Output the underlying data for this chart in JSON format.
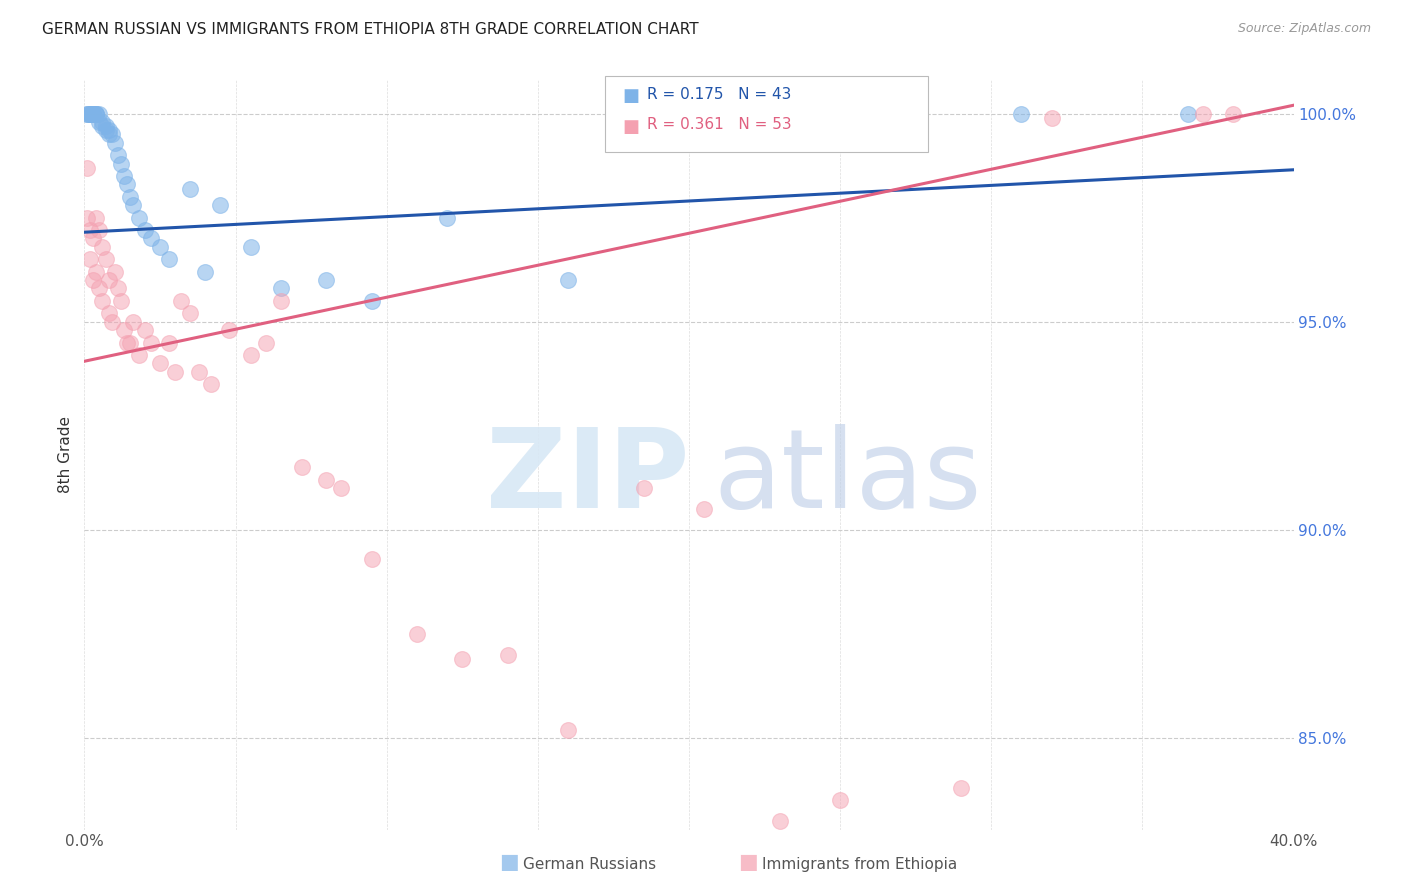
{
  "title": "GERMAN RUSSIAN VS IMMIGRANTS FROM ETHIOPIA 8TH GRADE CORRELATION CHART",
  "source": "Source: ZipAtlas.com",
  "ylabel": "8th Grade",
  "xlim": [
    0.0,
    0.4
  ],
  "ylim": [
    0.828,
    1.008
  ],
  "yticks": [
    0.85,
    0.9,
    0.95,
    1.0
  ],
  "yticklabels": [
    "85.0%",
    "90.0%",
    "95.0%",
    "100.0%"
  ],
  "blue_R": 0.175,
  "blue_N": 43,
  "pink_R": 0.361,
  "pink_N": 53,
  "legend_label_blue": "German Russians",
  "legend_label_pink": "Immigrants from Ethiopia",
  "blue_color": "#7EB3E8",
  "pink_color": "#F4A0B0",
  "blue_line_color": "#2255AA",
  "pink_line_color": "#E06080",
  "blue_line_x0": 0.0,
  "blue_line_y0": 0.9715,
  "blue_line_x1": 0.4,
  "blue_line_y1": 0.9865,
  "pink_line_x0": 0.0,
  "pink_line_y0": 0.9405,
  "pink_line_x1": 0.4,
  "pink_line_y1": 1.002,
  "blue_scatter_x": [
    0.001,
    0.001,
    0.002,
    0.002,
    0.002,
    0.003,
    0.003,
    0.003,
    0.004,
    0.004,
    0.004,
    0.005,
    0.005,
    0.006,
    0.006,
    0.007,
    0.007,
    0.008,
    0.008,
    0.009,
    0.01,
    0.011,
    0.012,
    0.013,
    0.014,
    0.015,
    0.016,
    0.018,
    0.02,
    0.022,
    0.025,
    0.028,
    0.035,
    0.04,
    0.045,
    0.055,
    0.065,
    0.08,
    0.095,
    0.12,
    0.16,
    0.31,
    0.365
  ],
  "blue_scatter_y": [
    1.0,
    1.0,
    1.0,
    1.0,
    1.0,
    1.0,
    1.0,
    1.0,
    1.0,
    1.0,
    1.0,
    1.0,
    0.998,
    0.998,
    0.997,
    0.997,
    0.996,
    0.996,
    0.995,
    0.995,
    0.993,
    0.99,
    0.988,
    0.985,
    0.983,
    0.98,
    0.978,
    0.975,
    0.972,
    0.97,
    0.968,
    0.965,
    0.982,
    0.962,
    0.978,
    0.968,
    0.958,
    0.96,
    0.955,
    0.975,
    0.96,
    1.0,
    1.0
  ],
  "pink_scatter_x": [
    0.001,
    0.001,
    0.002,
    0.002,
    0.003,
    0.003,
    0.004,
    0.004,
    0.005,
    0.005,
    0.006,
    0.006,
    0.007,
    0.008,
    0.008,
    0.009,
    0.01,
    0.011,
    0.012,
    0.013,
    0.014,
    0.015,
    0.016,
    0.018,
    0.02,
    0.022,
    0.025,
    0.028,
    0.03,
    0.032,
    0.035,
    0.038,
    0.042,
    0.048,
    0.055,
    0.06,
    0.065,
    0.072,
    0.08,
    0.085,
    0.095,
    0.11,
    0.125,
    0.14,
    0.16,
    0.185,
    0.205,
    0.23,
    0.25,
    0.29,
    0.32,
    0.37,
    0.38
  ],
  "pink_scatter_y": [
    0.987,
    0.975,
    0.972,
    0.965,
    0.97,
    0.96,
    0.975,
    0.962,
    0.972,
    0.958,
    0.968,
    0.955,
    0.965,
    0.96,
    0.952,
    0.95,
    0.962,
    0.958,
    0.955,
    0.948,
    0.945,
    0.945,
    0.95,
    0.942,
    0.948,
    0.945,
    0.94,
    0.945,
    0.938,
    0.955,
    0.952,
    0.938,
    0.935,
    0.948,
    0.942,
    0.945,
    0.955,
    0.915,
    0.912,
    0.91,
    0.893,
    0.875,
    0.869,
    0.87,
    0.852,
    0.91,
    0.905,
    0.83,
    0.835,
    0.838,
    0.999,
    1.0,
    1.0
  ]
}
